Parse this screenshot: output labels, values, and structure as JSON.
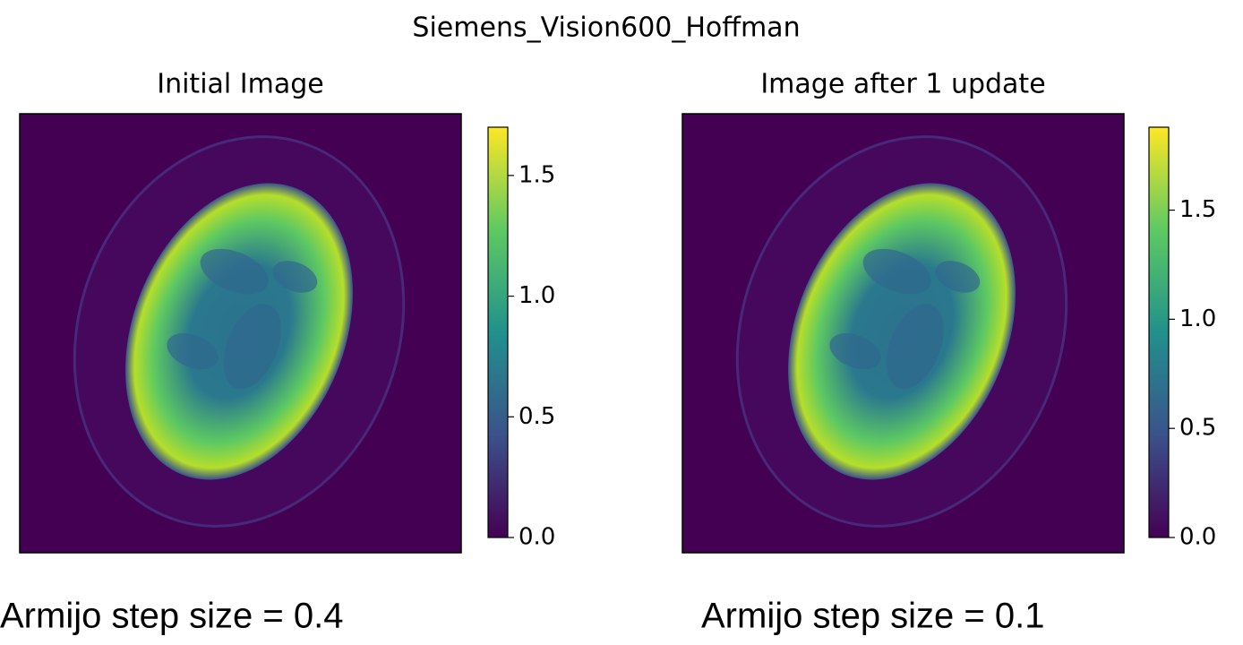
{
  "title": "Siemens_Vision600_Hoffman",
  "chart_data": [
    {
      "type": "image",
      "title": "Initial Image",
      "colormap": "viridis",
      "clim": [
        0,
        1.7
      ],
      "cticks": [
        {
          "value": 0,
          "label": "0.0"
        },
        0.5,
        {
          "value": 1,
          "label": "1.0"
        },
        1.5
      ],
      "caption": "Armijo step size = 0.4"
    },
    {
      "type": "image",
      "title": "Image after 1 update",
      "colormap": "viridis",
      "clim": [
        0,
        1.88
      ],
      "cticks": [
        {
          "value": 0,
          "label": "0.0"
        },
        0.5,
        {
          "value": 1,
          "label": "1.0"
        },
        1.5
      ],
      "caption": "Armijo step size = 0.1"
    }
  ]
}
